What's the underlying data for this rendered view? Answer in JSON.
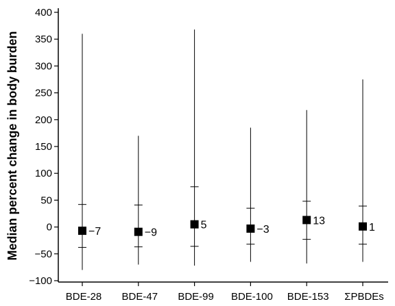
{
  "chart_data": {
    "type": "scatter",
    "title": "",
    "xlabel": "",
    "ylabel": "Median percent change in body burden",
    "ylim": [
      -100,
      400
    ],
    "yticks": [
      -100,
      -50,
      0,
      50,
      100,
      150,
      200,
      250,
      300,
      350,
      400
    ],
    "grid": false,
    "categories": [
      "BDE-28",
      "BDE-47",
      "BDE-99",
      "BDE-100",
      "BDE-153",
      "ΣPBDEs"
    ],
    "series": [
      {
        "median": [
          -7,
          -9,
          5,
          -3,
          13,
          1
        ],
        "labels": [
          "−7",
          "−9",
          "5",
          "−3",
          "13",
          "1"
        ],
        "whisker_low": [
          -80,
          -70,
          -72,
          -65,
          -68,
          -65
        ],
        "whisker_high": [
          360,
          170,
          368,
          185,
          218,
          275
        ],
        "q_low": [
          -38,
          -37,
          -36,
          -32,
          -23,
          -32
        ],
        "q_high": [
          42,
          41,
          75,
          35,
          48,
          39
        ]
      }
    ]
  }
}
